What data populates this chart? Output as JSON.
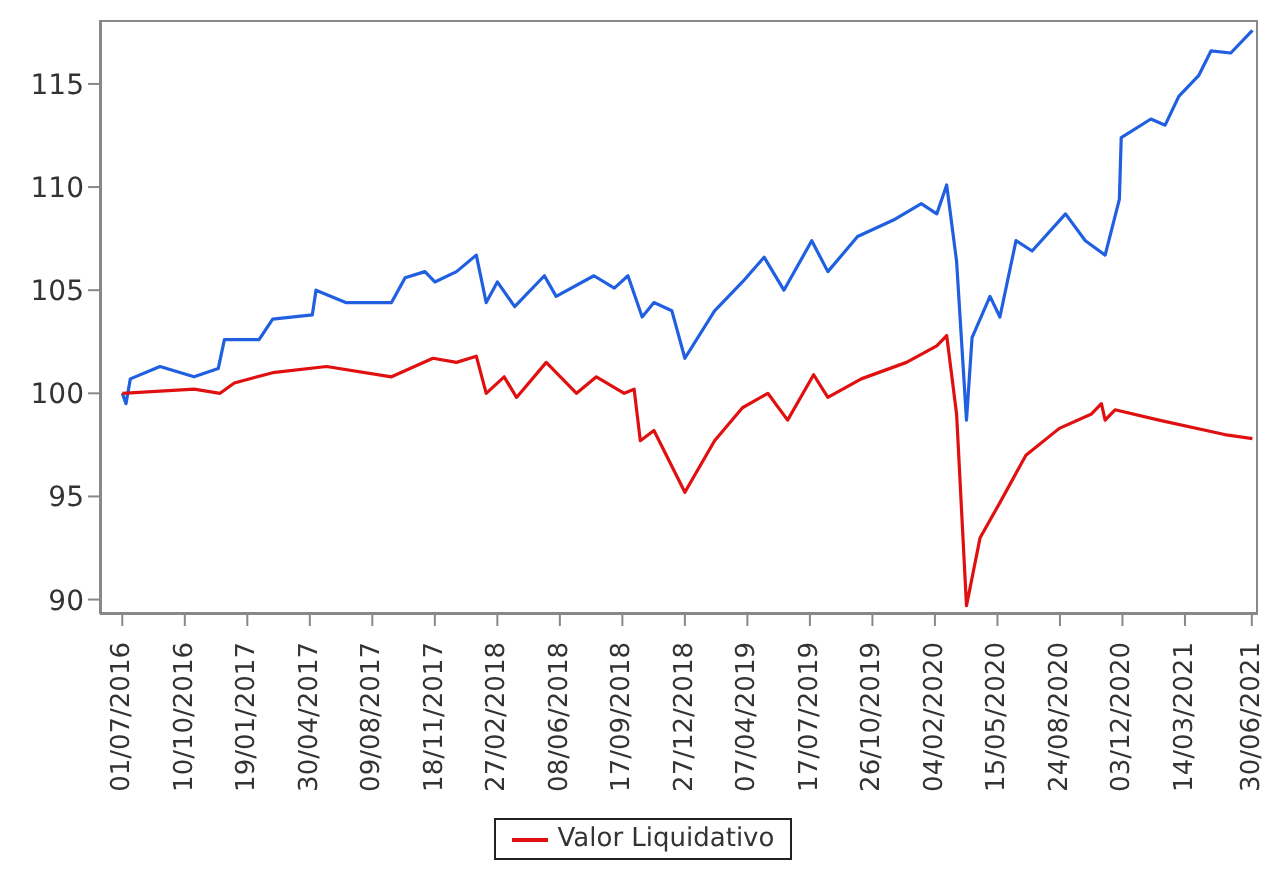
{
  "chart_data": {
    "type": "line",
    "legend": "bottom",
    "grid": false,
    "marker": "none",
    "line_style": "solid",
    "xlim": [
      "2016-05-26",
      "2021-07-10"
    ],
    "xticks": [
      {
        "value": "2016-07-01",
        "label": "01/07/2016"
      },
      {
        "value": "2016-10-10",
        "label": "10/10/2016"
      },
      {
        "value": "2017-01-19",
        "label": "19/01/2017"
      },
      {
        "value": "2017-04-30",
        "label": "30/04/2017"
      },
      {
        "value": "2017-08-09",
        "label": "09/08/2017"
      },
      {
        "value": "2017-11-18",
        "label": "18/11/2017"
      },
      {
        "value": "2018-02-27",
        "label": "27/02/2018"
      },
      {
        "value": "2018-06-08",
        "label": "08/06/2018"
      },
      {
        "value": "2018-09-17",
        "label": "17/09/2018"
      },
      {
        "value": "2018-12-27",
        "label": "27/12/2018"
      },
      {
        "value": "2019-04-07",
        "label": "07/04/2019"
      },
      {
        "value": "2019-07-17",
        "label": "17/07/2019"
      },
      {
        "value": "2019-10-26",
        "label": "26/10/2019"
      },
      {
        "value": "2020-02-04",
        "label": "04/02/2020"
      },
      {
        "value": "2020-05-15",
        "label": "15/05/2020"
      },
      {
        "value": "2020-08-24",
        "label": "24/08/2020"
      },
      {
        "value": "2020-12-03",
        "label": "03/12/2020"
      },
      {
        "value": "2021-03-14",
        "label": "14/03/2021"
      },
      {
        "value": "2021-06-30",
        "label": "30/06/2021"
      }
    ],
    "ylim": [
      89.3,
      118.1
    ],
    "yticks": [
      90,
      95,
      100,
      105,
      110,
      115
    ],
    "series": [
      {
        "color": "#1f5fe0",
        "x": [
          "2016-07-01",
          "2016-07-07",
          "2016-07-14",
          "2016-08-31",
          "2016-10-25",
          "2016-12-03",
          "2016-12-13",
          "2017-02-07",
          "2017-03-01",
          "2017-05-04",
          "2017-05-10",
          "2017-06-27",
          "2017-09-09",
          "2017-10-01",
          "2017-11-02",
          "2017-11-18",
          "2017-12-23",
          "2018-01-24",
          "2018-02-09",
          "2018-02-27",
          "2018-03-27",
          "2018-05-14",
          "2018-06-02",
          "2018-08-02",
          "2018-09-04",
          "2018-09-26",
          "2018-10-19",
          "2018-11-07",
          "2018-12-06",
          "2018-12-27",
          "2019-02-13",
          "2019-03-30",
          "2019-05-04",
          "2019-06-05",
          "2019-07-20",
          "2019-08-15",
          "2019-10-02",
          "2019-11-29",
          "2020-01-13",
          "2020-02-07",
          "2020-02-23",
          "2020-03-10",
          "2020-03-26",
          "2020-04-04",
          "2020-05-03",
          "2020-05-19",
          "2020-06-14",
          "2020-07-10",
          "2020-09-02",
          "2020-10-04",
          "2020-11-05",
          "2020-11-28",
          "2020-12-01",
          "2021-01-18",
          "2021-02-10",
          "2021-03-04",
          "2021-04-05",
          "2021-04-25",
          "2021-05-27",
          "2021-07-01"
        ],
        "values": [
          100.0,
          99.5,
          100.7,
          101.3,
          100.8,
          101.2,
          102.6,
          102.6,
          103.6,
          103.8,
          105.0,
          104.4,
          104.4,
          105.6,
          105.9,
          105.4,
          105.9,
          106.7,
          104.4,
          105.4,
          104.2,
          105.7,
          104.7,
          105.7,
          105.1,
          105.7,
          103.7,
          104.4,
          104.0,
          101.7,
          104.0,
          105.4,
          106.6,
          105.0,
          107.4,
          105.9,
          107.6,
          108.4,
          109.2,
          108.7,
          110.1,
          106.4,
          98.7,
          102.7,
          104.7,
          103.7,
          107.4,
          106.9,
          108.7,
          107.4,
          106.7,
          109.4,
          112.4,
          113.3,
          113.0,
          114.4,
          115.4,
          116.6,
          116.5,
          117.6
        ]
      },
      {
        "name": "Valor Liquidativo",
        "color": "#e01010",
        "x": [
          "2016-07-01",
          "2016-10-25",
          "2016-12-06",
          "2016-12-29",
          "2017-03-01",
          "2017-05-27",
          "2017-09-09",
          "2017-11-15",
          "2017-12-23",
          "2018-01-24",
          "2018-02-09",
          "2018-03-10",
          "2018-03-30",
          "2018-05-17",
          "2018-07-05",
          "2018-08-06",
          "2018-09-20",
          "2018-10-06",
          "2018-10-16",
          "2018-11-07",
          "2018-12-27",
          "2019-02-13",
          "2019-03-30",
          "2019-05-10",
          "2019-06-11",
          "2019-07-23",
          "2019-08-15",
          "2019-10-08",
          "2019-12-20",
          "2020-02-07",
          "2020-02-23",
          "2020-03-10",
          "2020-03-26",
          "2020-04-17",
          "2020-05-19",
          "2020-06-30",
          "2020-08-23",
          "2020-10-14",
          "2020-10-30",
          "2020-11-05",
          "2020-11-21",
          "2021-01-31",
          "2021-05-17",
          "2021-07-01"
        ],
        "values": [
          100.0,
          100.2,
          100.0,
          100.5,
          101.0,
          101.3,
          100.8,
          101.7,
          101.5,
          101.8,
          100.0,
          100.8,
          99.8,
          101.5,
          100.0,
          100.8,
          100.0,
          100.2,
          97.7,
          98.2,
          95.2,
          97.7,
          99.3,
          100.0,
          98.7,
          100.9,
          99.8,
          100.7,
          101.5,
          102.3,
          102.8,
          99.0,
          89.7,
          93.0,
          94.7,
          97.0,
          98.3,
          99.0,
          99.5,
          98.7,
          99.2,
          98.7,
          98.0,
          97.8
        ]
      }
    ]
  }
}
